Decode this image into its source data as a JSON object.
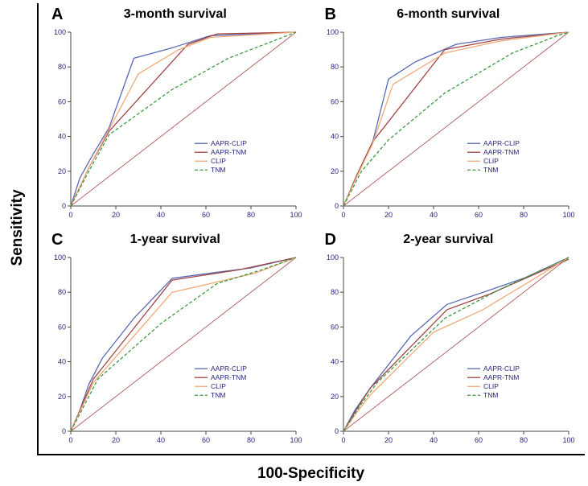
{
  "figure": {
    "y_axis_label": "Sensitivity",
    "x_axis_label": "100-Specificity"
  },
  "panels": [
    {
      "letter": "A"
    },
    {
      "letter": "B"
    },
    {
      "letter": "C"
    },
    {
      "letter": "D"
    }
  ],
  "colors": {
    "aapr_clip": "#5a6ab4",
    "aapr_tnm": "#a04545",
    "clip": "#f0aa78",
    "tnm": "#3d9a40",
    "reference": "#b05a5a",
    "axis": "#444444",
    "tick_text": "#26267e"
  },
  "chart_data": [
    {
      "type": "line",
      "subtype": "roc",
      "title": "3-month survival",
      "xlabel": "100-Specificity",
      "ylabel": "Sensitivity",
      "xlim": [
        0,
        100
      ],
      "ylim": [
        0,
        100
      ],
      "xticks": [
        0,
        20,
        40,
        60,
        80,
        100
      ],
      "yticks": [
        0,
        20,
        40,
        60,
        80,
        100
      ],
      "grid": false,
      "legend_position": "lower-right",
      "reference_diagonal": true,
      "reference_color": "#b05a5a",
      "series": [
        {
          "name": "AAPR-CLIP",
          "color": "#5a6ab4",
          "dash": false,
          "points": [
            [
              0,
              0
            ],
            [
              4,
              16
            ],
            [
              10,
              30
            ],
            [
              17,
              45
            ],
            [
              28,
              85
            ],
            [
              45,
              91
            ],
            [
              62,
              98
            ],
            [
              100,
              100
            ]
          ]
        },
        {
          "name": "AAPR-TNM",
          "color": "#a04545",
          "dash": false,
          "points": [
            [
              0,
              0
            ],
            [
              8,
              22
            ],
            [
              17,
              43
            ],
            [
              52,
              93
            ],
            [
              65,
              99
            ],
            [
              100,
              100
            ]
          ]
        },
        {
          "name": "CLIP",
          "color": "#f0aa78",
          "dash": false,
          "points": [
            [
              0,
              0
            ],
            [
              8,
              22
            ],
            [
              17,
              44
            ],
            [
              30,
              76
            ],
            [
              48,
              90
            ],
            [
              62,
              97
            ],
            [
              100,
              100
            ]
          ]
        },
        {
          "name": "TNM",
          "color": "#3d9a40",
          "dash": true,
          "points": [
            [
              0,
              0
            ],
            [
              8,
              20
            ],
            [
              17,
              41
            ],
            [
              45,
              67
            ],
            [
              70,
              85
            ],
            [
              100,
              100
            ]
          ]
        }
      ]
    },
    {
      "type": "line",
      "subtype": "roc",
      "title": "6-month survival",
      "xlabel": "100-Specificity",
      "ylabel": "Sensitivity",
      "xlim": [
        0,
        100
      ],
      "ylim": [
        0,
        100
      ],
      "xticks": [
        0,
        20,
        40,
        60,
        80,
        100
      ],
      "yticks": [
        0,
        20,
        40,
        60,
        80,
        100
      ],
      "grid": false,
      "legend_position": "lower-right",
      "reference_diagonal": true,
      "reference_color": "#b05a5a",
      "series": [
        {
          "name": "AAPR-CLIP",
          "color": "#5a6ab4",
          "dash": false,
          "points": [
            [
              0,
              0
            ],
            [
              5,
              15
            ],
            [
              13,
              37
            ],
            [
              20,
              73
            ],
            [
              32,
              83
            ],
            [
              50,
              93
            ],
            [
              70,
              97
            ],
            [
              100,
              100
            ]
          ]
        },
        {
          "name": "AAPR-TNM",
          "color": "#a04545",
          "dash": false,
          "points": [
            [
              0,
              0
            ],
            [
              6,
              18
            ],
            [
              13,
              37
            ],
            [
              45,
              90
            ],
            [
              70,
              96
            ],
            [
              100,
              100
            ]
          ]
        },
        {
          "name": "CLIP",
          "color": "#f0aa78",
          "dash": false,
          "points": [
            [
              0,
              0
            ],
            [
              6,
              17
            ],
            [
              13,
              36
            ],
            [
              22,
              70
            ],
            [
              45,
              88
            ],
            [
              70,
              95
            ],
            [
              100,
              100
            ]
          ]
        },
        {
          "name": "TNM",
          "color": "#3d9a40",
          "dash": true,
          "points": [
            [
              0,
              0
            ],
            [
              8,
              20
            ],
            [
              20,
              38
            ],
            [
              45,
              65
            ],
            [
              75,
              88
            ],
            [
              95,
              98
            ],
            [
              100,
              100
            ]
          ]
        }
      ]
    },
    {
      "type": "line",
      "subtype": "roc",
      "title": "1-year survival",
      "xlabel": "100-Specificity",
      "ylabel": "Sensitivity",
      "xlim": [
        0,
        100
      ],
      "ylim": [
        0,
        100
      ],
      "xticks": [
        0,
        20,
        40,
        60,
        80,
        100
      ],
      "yticks": [
        0,
        20,
        40,
        60,
        80,
        100
      ],
      "grid": false,
      "legend_position": "lower-right",
      "reference_diagonal": true,
      "reference_color": "#b05a5a",
      "series": [
        {
          "name": "AAPR-CLIP",
          "color": "#5a6ab4",
          "dash": false,
          "points": [
            [
              0,
              0
            ],
            [
              4,
              12
            ],
            [
              8,
              27
            ],
            [
              14,
              42
            ],
            [
              28,
              65
            ],
            [
              45,
              88
            ],
            [
              62,
              91
            ],
            [
              80,
              94
            ],
            [
              100,
              100
            ]
          ]
        },
        {
          "name": "AAPR-TNM",
          "color": "#a04545",
          "dash": false,
          "points": [
            [
              0,
              0
            ],
            [
              4,
              12
            ],
            [
              10,
              30
            ],
            [
              45,
              87
            ],
            [
              75,
              93
            ],
            [
              100,
              100
            ]
          ]
        },
        {
          "name": "CLIP",
          "color": "#f0aa78",
          "dash": false,
          "points": [
            [
              0,
              0
            ],
            [
              5,
              14
            ],
            [
              10,
              28
            ],
            [
              45,
              80
            ],
            [
              62,
              85
            ],
            [
              82,
              91
            ],
            [
              100,
              100
            ]
          ]
        },
        {
          "name": "TNM",
          "color": "#3d9a40",
          "dash": true,
          "points": [
            [
              0,
              0
            ],
            [
              6,
              15
            ],
            [
              12,
              30
            ],
            [
              40,
              62
            ],
            [
              65,
              85
            ],
            [
              85,
              93
            ],
            [
              100,
              100
            ]
          ]
        }
      ]
    },
    {
      "type": "line",
      "subtype": "roc",
      "title": "2-year survival",
      "xlabel": "100-Specificity",
      "ylabel": "Sensitivity",
      "xlim": [
        0,
        100
      ],
      "ylim": [
        0,
        100
      ],
      "xticks": [
        0,
        20,
        40,
        60,
        80,
        100
      ],
      "yticks": [
        0,
        20,
        40,
        60,
        80,
        100
      ],
      "grid": false,
      "legend_position": "lower-right",
      "reference_diagonal": true,
      "reference_color": "#b05a5a",
      "series": [
        {
          "name": "AAPR-CLIP",
          "color": "#5a6ab4",
          "dash": false,
          "points": [
            [
              0,
              0
            ],
            [
              5,
              12
            ],
            [
              12,
              25
            ],
            [
              30,
              55
            ],
            [
              46,
              73
            ],
            [
              62,
              80
            ],
            [
              80,
              88
            ],
            [
              100,
              100
            ]
          ]
        },
        {
          "name": "AAPR-TNM",
          "color": "#a04545",
          "dash": false,
          "points": [
            [
              0,
              0
            ],
            [
              6,
              13
            ],
            [
              12,
              25
            ],
            [
              46,
              70
            ],
            [
              65,
              79
            ],
            [
              100,
              99
            ]
          ]
        },
        {
          "name": "CLIP",
          "color": "#f0aa78",
          "dash": false,
          "points": [
            [
              0,
              0
            ],
            [
              6,
              11
            ],
            [
              12,
              21
            ],
            [
              40,
              57
            ],
            [
              62,
              70
            ],
            [
              85,
              88
            ],
            [
              100,
              100
            ]
          ]
        },
        {
          "name": "TNM",
          "color": "#3d9a40",
          "dash": true,
          "points": [
            [
              0,
              0
            ],
            [
              7,
              14
            ],
            [
              15,
              28
            ],
            [
              45,
              65
            ],
            [
              70,
              82
            ],
            [
              100,
              100
            ]
          ]
        }
      ]
    }
  ]
}
